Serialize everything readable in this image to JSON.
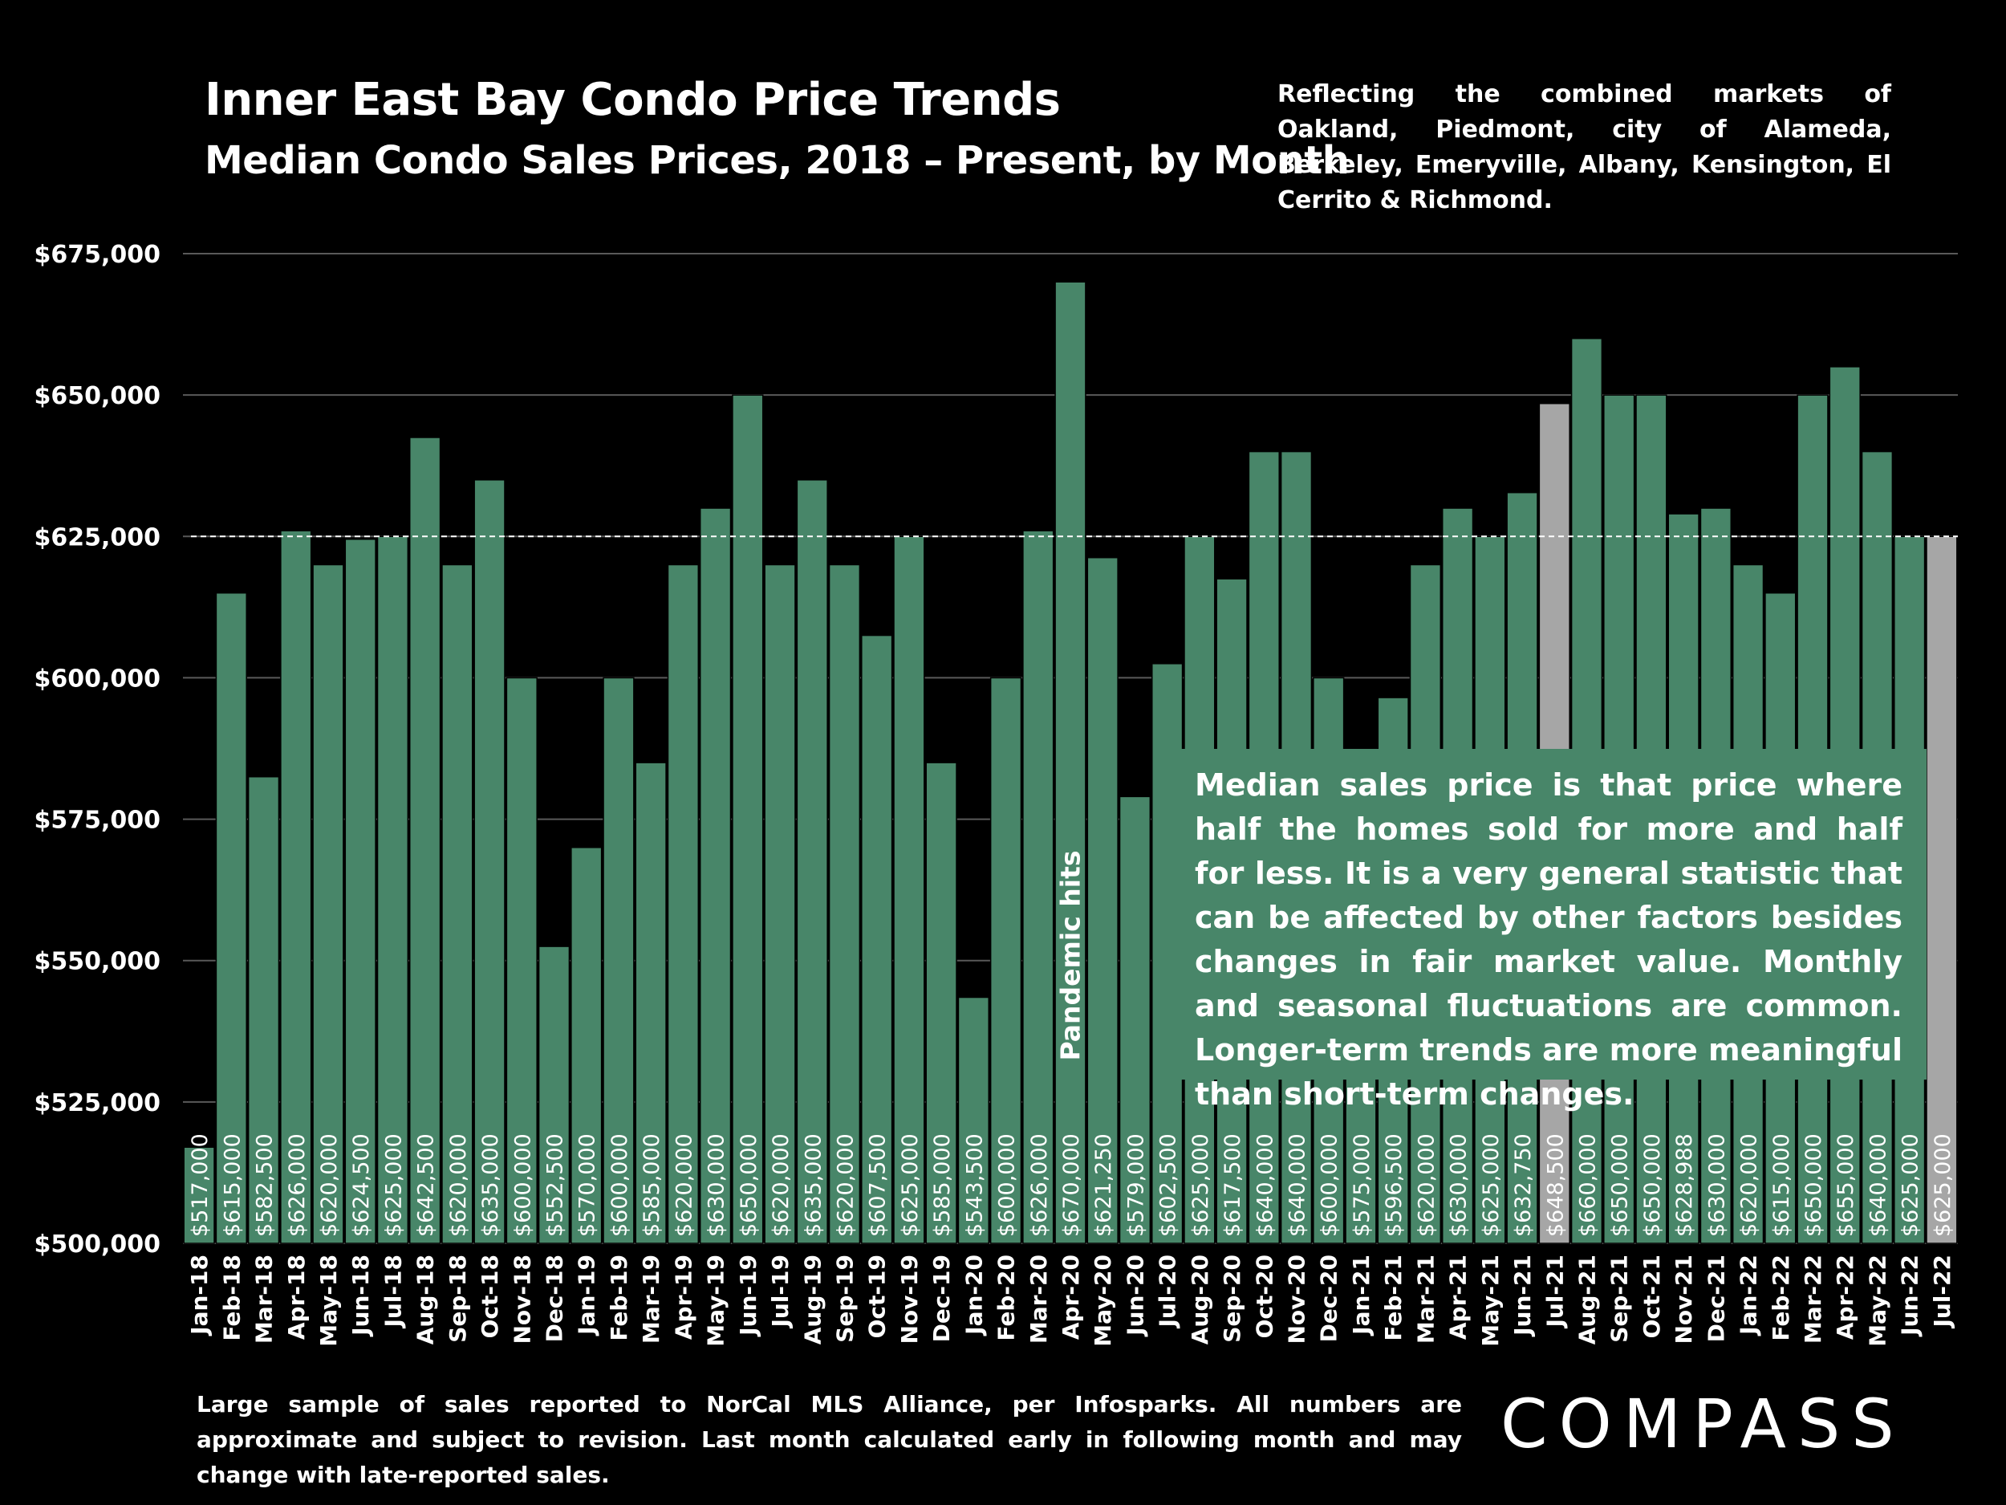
{
  "title": "Inner East Bay Condo Price Trends",
  "subtitle": "Median Condo Sales Prices, 2018 – Present, by Month",
  "note_top": "Reflecting the combined markets of Oakland, Piedmont, city of Alameda, Berkeley, Emeryville, Albany, Kensington, El Cerrito & Richmond.",
  "explain_box": "Median sales price is that price where half the homes sold for more and half for less. It is a very general statistic that can be affected by other factors besides changes in fair market value. Monthly and seasonal fluctuations are common. Longer-term trends are more meaningful than short-term changes.",
  "pandemic_label": "Pandemic hits",
  "footnote": "Large sample of sales reported to NorCal MLS Alliance, per Infosparks. All numbers are approximate and subject to revision. Last month calculated early in following month and may change with late-reported sales.",
  "logo": "COMPASS",
  "colors": {
    "bar": "#488669",
    "highlight": "#a6a6a6",
    "background": "#000000",
    "grid": "#595959",
    "reference_line": "#ffffff"
  },
  "chart_data": {
    "type": "bar",
    "categories": [
      "Jan-18",
      "Feb-18",
      "Mar-18",
      "Apr-18",
      "May-18",
      "Jun-18",
      "Jul-18",
      "Aug-18",
      "Sep-18",
      "Oct-18",
      "Nov-18",
      "Dec-18",
      "Jan-19",
      "Feb-19",
      "Mar-19",
      "Apr-19",
      "May-19",
      "Jun-19",
      "Jul-19",
      "Aug-19",
      "Sep-19",
      "Oct-19",
      "Nov-19",
      "Dec-19",
      "Jan-20",
      "Feb-20",
      "Mar-20",
      "Apr-20",
      "May-20",
      "Jun-20",
      "Jul-20",
      "Aug-20",
      "Sep-20",
      "Oct-20",
      "Nov-20",
      "Dec-20",
      "Jan-21",
      "Feb-21",
      "Mar-21",
      "Apr-21",
      "May-21",
      "Jun-21",
      "Jul-21",
      "Aug-21",
      "Sep-21",
      "Oct-21",
      "Nov-21",
      "Dec-21",
      "Jan-22",
      "Feb-22",
      "Mar-22",
      "Apr-22",
      "May-22",
      "Jun-22",
      "Jul-22"
    ],
    "values": [
      517000,
      615000,
      582500,
      626000,
      620000,
      624500,
      625000,
      642500,
      620000,
      635000,
      600000,
      552500,
      570000,
      600000,
      585000,
      620000,
      630000,
      650000,
      620000,
      635000,
      620000,
      607500,
      625000,
      585000,
      543500,
      600000,
      626000,
      670000,
      621250,
      579000,
      602500,
      625000,
      617500,
      640000,
      640000,
      600000,
      575000,
      596500,
      620000,
      630000,
      625000,
      632750,
      648500,
      660000,
      650000,
      650000,
      628988,
      630000,
      620000,
      615000,
      650000,
      655000,
      640000,
      625000,
      625000
    ],
    "data_labels": [
      "$517,000",
      "$615,000",
      "$582,500",
      "$626,000",
      "$620,000",
      "$624,500",
      "$625,000",
      "$642,500",
      "$620,000",
      "$635,000",
      "$600,000",
      "$552,500",
      "$570,000",
      "$600,000",
      "$585,000",
      "$620,000",
      "$630,000",
      "$650,000",
      "$620,000",
      "$635,000",
      "$620,000",
      "$607,500",
      "$625,000",
      "$585,000",
      "$543,500",
      "$600,000",
      "$626,000",
      "$670,000",
      "$621,250",
      "$579,000",
      "$602,500",
      "$625,000",
      "$617,500",
      "$640,000",
      "$640,000",
      "$600,000",
      "$575,000",
      "$596,500",
      "$620,000",
      "$630,000",
      "$625,000",
      "$632,750",
      "$648,500",
      "$660,000",
      "$650,000",
      "$650,000",
      "$628,988",
      "$630,000",
      "$620,000",
      "$615,000",
      "$650,000",
      "$655,000",
      "$640,000",
      "$625,000",
      "$625,000"
    ],
    "highlighted": [
      "Jul-21",
      "Jul-22"
    ],
    "reference_line": 625000,
    "ylim": [
      500000,
      675000
    ],
    "yticks": [
      500000,
      525000,
      550000,
      575000,
      600000,
      625000,
      650000,
      675000
    ],
    "ytick_labels": [
      "$500,000",
      "$525,000",
      "$550,000",
      "$575,000",
      "$600,000",
      "$625,000",
      "$650,000",
      "$675,000"
    ],
    "grid": true,
    "title": "Inner East Bay Condo Price Trends",
    "subtitle": "Median Condo Sales Prices, 2018 – Present, by Month",
    "xlabel": "",
    "ylabel": ""
  }
}
